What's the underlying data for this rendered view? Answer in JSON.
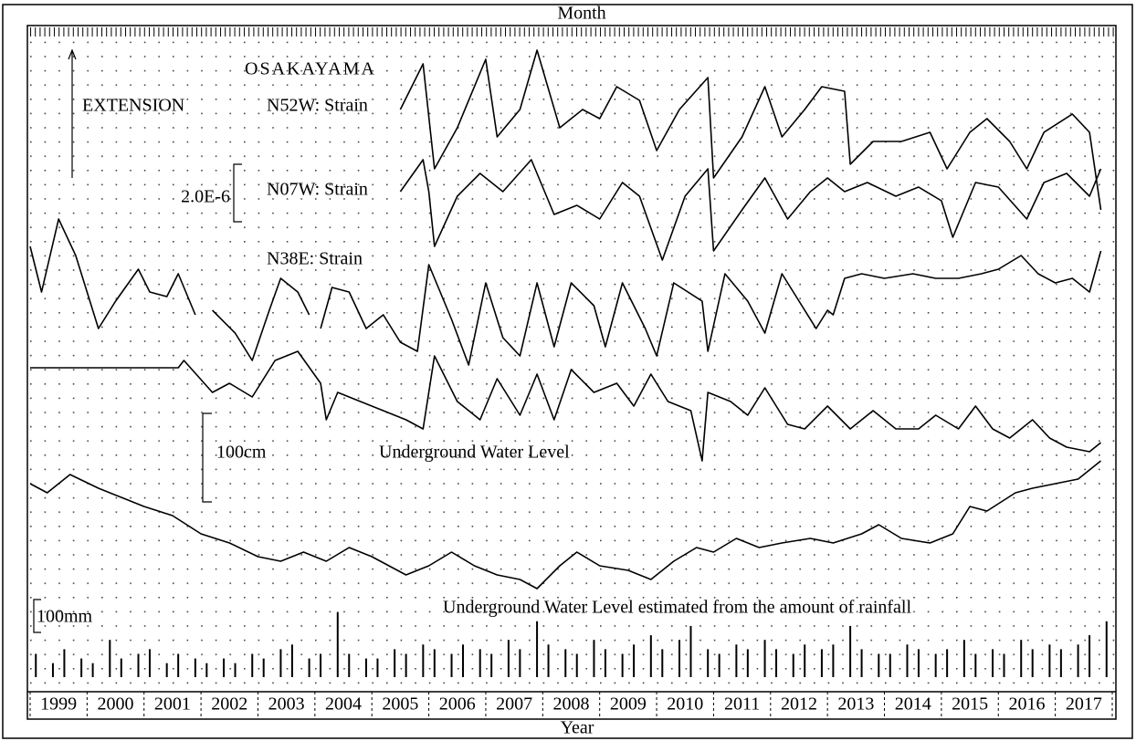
{
  "chart_data": [
    {
      "type": "line",
      "top_label": "Month",
      "bottom_label": "Year",
      "categories": [
        "1999",
        "2000",
        "2001",
        "2002",
        "2003",
        "2004",
        "2005",
        "2006",
        "2007",
        "2008",
        "2009",
        "2010",
        "2011",
        "2012",
        "2013",
        "2014",
        "2015",
        "2016",
        "2017"
      ],
      "xlim": [
        1999,
        2018
      ],
      "xticks": [
        1999,
        2000,
        2001,
        2002,
        2003,
        2004,
        2005,
        2006,
        2007,
        2008,
        2009,
        2010,
        2011,
        2012,
        2013,
        2014,
        2015,
        2016,
        2017,
        2018
      ],
      "ylim": [
        0,
        725
      ],
      "grid": true,
      "annotations": [
        "OSAKAYAMA",
        "EXTENSION",
        "2.0E-6",
        "100cm",
        "100mm"
      ],
      "series": [
        {
          "name": "N52W: Strain",
          "color": "#000000",
          "x": [
            2005.5,
            2005.9,
            2006.1,
            2006.5,
            2007.0,
            2007.2,
            2007.6,
            2007.9,
            2008.3,
            2008.7,
            2009.0,
            2009.3,
            2009.7,
            2010.0,
            2010.4,
            2010.9,
            2011.0,
            2011.5,
            2011.9,
            2012.2,
            2012.6,
            2012.9,
            2013.3,
            2013.4,
            2013.8,
            2014.3,
            2014.8,
            2015.1,
            2015.5,
            2015.8,
            2016.2,
            2016.5,
            2016.8,
            2017.3,
            2017.6,
            2017.8
          ],
          "values": [
            635,
            685,
            570,
            615,
            690,
            605,
            635,
            700,
            615,
            635,
            625,
            660,
            645,
            590,
            635,
            670,
            560,
            605,
            660,
            605,
            635,
            660,
            655,
            575,
            600,
            600,
            610,
            570,
            610,
            625,
            600,
            570,
            610,
            630,
            610,
            525
          ]
        },
        {
          "name": "N07W: Strain",
          "color": "#000000",
          "x": [
            2005.5,
            2005.9,
            2006.0,
            2006.1,
            2006.5,
            2006.9,
            2007.3,
            2007.8,
            2008.2,
            2008.6,
            2009.0,
            2009.4,
            2009.7,
            2010.1,
            2010.5,
            2010.9,
            2011.0,
            2011.5,
            2011.9,
            2012.3,
            2012.7,
            2013.0,
            2013.3,
            2013.7,
            2014.2,
            2014.6,
            2015.0,
            2015.2,
            2015.6,
            2016.0,
            2016.5,
            2016.8,
            2017.2,
            2017.6,
            2017.8
          ],
          "values": [
            545,
            580,
            545,
            485,
            540,
            565,
            545,
            580,
            520,
            530,
            515,
            555,
            540,
            470,
            540,
            570,
            480,
            525,
            560,
            515,
            545,
            560,
            545,
            555,
            540,
            550,
            535,
            495,
            555,
            550,
            515,
            555,
            565,
            540,
            570
          ]
        },
        {
          "name": "N38E: Strain",
          "color": "#000000",
          "x": [
            1999.0,
            1999.2,
            1999.5,
            1999.8,
            2000.2,
            2000.5,
            2000.9,
            2001.1,
            2001.4,
            2001.6,
            2001.9,
            2002.05,
            2002.2,
            2002.6,
            2002.9,
            2003.2,
            2003.4,
            2003.7,
            2003.9,
            2004.0,
            2004.1,
            2004.3,
            2004.6,
            2004.9,
            2005.2,
            2005.5,
            2005.8,
            2006.0,
            2006.4,
            2006.7,
            2007.0,
            2007.3,
            2007.6,
            2007.9,
            2008.2,
            2008.5,
            2008.9,
            2009.1,
            2009.4,
            2009.8,
            2010.0,
            2010.3,
            2010.8,
            2010.9,
            2011.2,
            2011.6,
            2011.9,
            2012.2,
            2012.5,
            2012.8,
            2013.0,
            2013.1,
            2013.3,
            2013.6,
            2014.0,
            2014.5,
            2014.9,
            2015.3,
            2015.7,
            2016.0,
            2016.4,
            2016.7,
            2017.0,
            2017.3,
            2017.6,
            2017.8
          ],
          "values": [
            485,
            435,
            515,
            475,
            395,
            425,
            460,
            435,
            430,
            455,
            410,
            null,
            415,
            390,
            360,
            415,
            450,
            435,
            410,
            null,
            395,
            440,
            435,
            395,
            410,
            380,
            370,
            465,
            405,
            355,
            445,
            385,
            365,
            445,
            375,
            445,
            420,
            375,
            445,
            395,
            365,
            445,
            425,
            370,
            455,
            425,
            390,
            455,
            425,
            395,
            415,
            410,
            450,
            455,
            450,
            455,
            450,
            450,
            455,
            460,
            475,
            455,
            445,
            450,
            435,
            480
          ]
        },
        {
          "name": "Underground Water Level",
          "color": "#000000",
          "x": [
            1999.0,
            2001.6,
            2001.7,
            2002.2,
            2002.5,
            2002.9,
            2003.3,
            2003.7,
            2004.1,
            2004.2,
            2004.4,
            2004.8,
            2005.2,
            2005.6,
            2005.9,
            2006.1,
            2006.5,
            2006.9,
            2007.2,
            2007.6,
            2007.9,
            2008.2,
            2008.5,
            2008.9,
            2009.3,
            2009.6,
            2009.9,
            2010.2,
            2010.6,
            2010.8,
            2010.9,
            2011.3,
            2011.6,
            2011.9,
            2012.3,
            2012.6,
            2013.0,
            2013.4,
            2013.8,
            2014.2,
            2014.6,
            2014.9,
            2015.3,
            2015.6,
            2015.9,
            2016.2,
            2016.6,
            2016.9,
            2017.2,
            2017.6,
            2017.8
          ],
          "values": [
            352,
            352,
            360,
            325,
            335,
            320,
            360,
            370,
            335,
            295,
            325,
            315,
            305,
            295,
            285,
            365,
            315,
            295,
            340,
            300,
            345,
            295,
            350,
            325,
            335,
            310,
            345,
            315,
            305,
            250,
            325,
            315,
            300,
            330,
            290,
            285,
            310,
            285,
            305,
            285,
            285,
            300,
            285,
            310,
            285,
            275,
            295,
            275,
            265,
            260,
            270
          ]
        },
        {
          "name": "Underground Water Level estimated from the amount of rainfall",
          "color": "#000000",
          "x": [
            1999.0,
            1999.3,
            1999.7,
            2000.2,
            2000.6,
            2001.0,
            2001.5,
            2002.0,
            2002.5,
            2003.0,
            2003.4,
            2003.8,
            2004.2,
            2004.6,
            2005.0,
            2005.6,
            2006.0,
            2006.4,
            2006.8,
            2007.2,
            2007.6,
            2007.9,
            2008.3,
            2008.6,
            2009.0,
            2009.5,
            2009.9,
            2010.3,
            2010.7,
            2011.0,
            2011.4,
            2011.8,
            2012.2,
            2012.7,
            2013.1,
            2013.6,
            2013.9,
            2014.3,
            2014.8,
            2015.2,
            2015.5,
            2015.8,
            2016.3,
            2016.6,
            2017.0,
            2017.4,
            2017.8
          ],
          "values": [
            225,
            215,
            235,
            220,
            210,
            200,
            190,
            170,
            160,
            145,
            140,
            150,
            140,
            155,
            145,
            125,
            135,
            150,
            135,
            125,
            120,
            110,
            135,
            150,
            135,
            130,
            120,
            140,
            155,
            150,
            165,
            155,
            160,
            165,
            160,
            170,
            180,
            165,
            160,
            170,
            200,
            195,
            215,
            220,
            225,
            230,
            250
          ]
        }
      ]
    },
    {
      "type": "bar",
      "xlim": [
        1999,
        2018
      ],
      "ylim": [
        0,
        100
      ],
      "color": "#000000",
      "x": [
        1999.1,
        1999.4,
        1999.6,
        1999.9,
        2000.1,
        2000.4,
        2000.6,
        2000.9,
        2001.1,
        2001.4,
        2001.6,
        2001.9,
        2002.1,
        2002.4,
        2002.6,
        2002.9,
        2003.1,
        2003.4,
        2003.6,
        2003.9,
        2004.1,
        2004.4,
        2004.6,
        2004.9,
        2005.1,
        2005.4,
        2005.6,
        2005.9,
        2006.1,
        2006.4,
        2006.6,
        2006.9,
        2007.1,
        2007.4,
        2007.6,
        2007.9,
        2008.1,
        2008.4,
        2008.6,
        2008.9,
        2009.1,
        2009.4,
        2009.6,
        2009.9,
        2010.1,
        2010.4,
        2010.6,
        2010.9,
        2011.1,
        2011.4,
        2011.6,
        2011.9,
        2012.1,
        2012.4,
        2012.6,
        2012.9,
        2013.1,
        2013.4,
        2013.6,
        2013.9,
        2014.1,
        2014.4,
        2014.6,
        2014.9,
        2015.1,
        2015.4,
        2015.6,
        2015.9,
        2016.1,
        2016.4,
        2016.6,
        2016.9,
        2017.1,
        2017.4,
        2017.6,
        2017.9
      ],
      "values": [
        25,
        15,
        30,
        20,
        15,
        40,
        20,
        25,
        30,
        15,
        25,
        20,
        15,
        20,
        15,
        25,
        20,
        30,
        35,
        20,
        25,
        70,
        25,
        20,
        20,
        30,
        25,
        35,
        30,
        25,
        35,
        30,
        25,
        40,
        30,
        60,
        35,
        30,
        25,
        40,
        30,
        25,
        35,
        45,
        30,
        40,
        55,
        30,
        25,
        35,
        30,
        40,
        30,
        25,
        35,
        30,
        35,
        55,
        30,
        25,
        25,
        35,
        30,
        25,
        30,
        40,
        25,
        30,
        25,
        40,
        30,
        35,
        30,
        35,
        45,
        60
      ]
    }
  ]
}
